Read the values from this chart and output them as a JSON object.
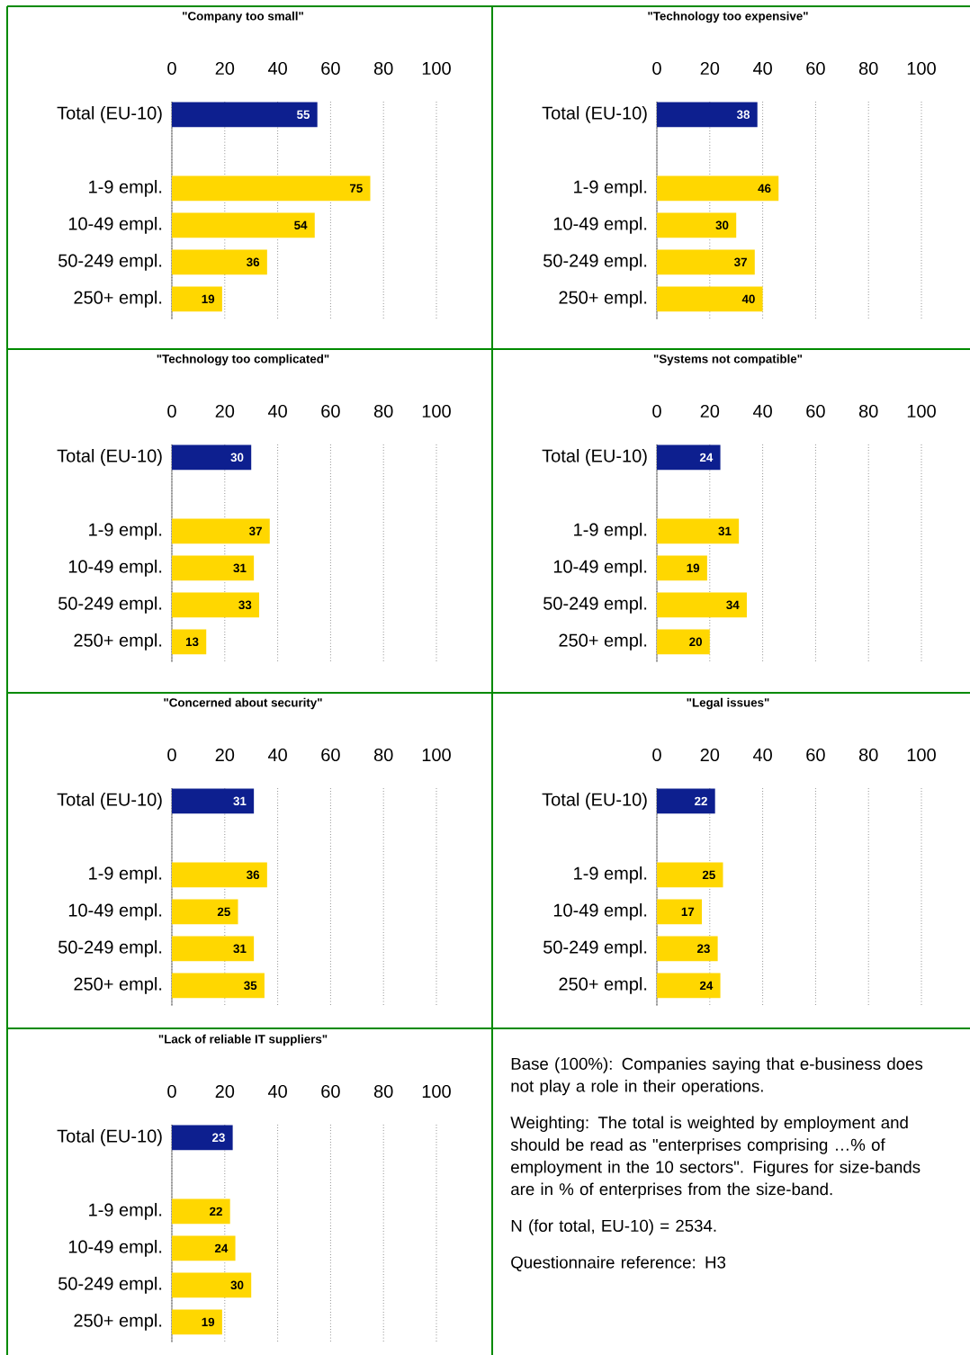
{
  "chart_data": [
    {
      "type": "bar",
      "orientation": "horizontal",
      "title": "\"Company too small\"",
      "categories": [
        "Total (EU-10)",
        null,
        "1-9 empl.",
        "10-49 empl.",
        "50-249 empl.",
        "250+ empl."
      ],
      "values": [
        55,
        null,
        75,
        54,
        36,
        19
      ],
      "colors": [
        "#0d1f8f",
        null,
        "#ffd700",
        "#ffd700",
        "#ffd700",
        "#ffd700"
      ],
      "xlim": [
        0,
        100
      ],
      "xticks": [
        0,
        20,
        40,
        60,
        80,
        100
      ],
      "grid": "x",
      "data_labels": true
    },
    {
      "type": "bar",
      "orientation": "horizontal",
      "title": "\"Technology too expensive\"",
      "categories": [
        "Total (EU-10)",
        null,
        "1-9 empl.",
        "10-49 empl.",
        "50-249 empl.",
        "250+ empl."
      ],
      "values": [
        38,
        null,
        46,
        30,
        37,
        40
      ],
      "colors": [
        "#0d1f8f",
        null,
        "#ffd700",
        "#ffd700",
        "#ffd700",
        "#ffd700"
      ],
      "xlim": [
        0,
        100
      ],
      "xticks": [
        0,
        20,
        40,
        60,
        80,
        100
      ],
      "grid": "x",
      "data_labels": true
    },
    {
      "type": "bar",
      "orientation": "horizontal",
      "title": "\"Technology too complicated\"",
      "categories": [
        "Total (EU-10)",
        null,
        "1-9 empl.",
        "10-49 empl.",
        "50-249 empl.",
        "250+ empl."
      ],
      "values": [
        30,
        null,
        37,
        31,
        33,
        13
      ],
      "colors": [
        "#0d1f8f",
        null,
        "#ffd700",
        "#ffd700",
        "#ffd700",
        "#ffd700"
      ],
      "xlim": [
        0,
        100
      ],
      "xticks": [
        0,
        20,
        40,
        60,
        80,
        100
      ],
      "grid": "x",
      "data_labels": true
    },
    {
      "type": "bar",
      "orientation": "horizontal",
      "title": "\"Systems not compatible\"",
      "categories": [
        "Total (EU-10)",
        null,
        "1-9 empl.",
        "10-49 empl.",
        "50-249 empl.",
        "250+ empl."
      ],
      "values": [
        24,
        null,
        31,
        19,
        34,
        20
      ],
      "colors": [
        "#0d1f8f",
        null,
        "#ffd700",
        "#ffd700",
        "#ffd700",
        "#ffd700"
      ],
      "xlim": [
        0,
        100
      ],
      "xticks": [
        0,
        20,
        40,
        60,
        80,
        100
      ],
      "grid": "x",
      "data_labels": true
    },
    {
      "type": "bar",
      "orientation": "horizontal",
      "title": "\"Concerned about security\"",
      "categories": [
        "Total (EU-10)",
        null,
        "1-9 empl.",
        "10-49 empl.",
        "50-249 empl.",
        "250+ empl."
      ],
      "values": [
        31,
        null,
        36,
        25,
        31,
        35
      ],
      "colors": [
        "#0d1f8f",
        null,
        "#ffd700",
        "#ffd700",
        "#ffd700",
        "#ffd700"
      ],
      "xlim": [
        0,
        100
      ],
      "xticks": [
        0,
        20,
        40,
        60,
        80,
        100
      ],
      "grid": "x",
      "data_labels": true
    },
    {
      "type": "bar",
      "orientation": "horizontal",
      "title": "\"Legal issues\"",
      "categories": [
        "Total (EU-10)",
        null,
        "1-9 empl.",
        "10-49 empl.",
        "50-249 empl.",
        "250+ empl."
      ],
      "values": [
        22,
        null,
        25,
        17,
        23,
        24
      ],
      "colors": [
        "#0d1f8f",
        null,
        "#ffd700",
        "#ffd700",
        "#ffd700",
        "#ffd700"
      ],
      "xlim": [
        0,
        100
      ],
      "xticks": [
        0,
        20,
        40,
        60,
        80,
        100
      ],
      "grid": "x",
      "data_labels": true
    },
    {
      "type": "bar",
      "orientation": "horizontal",
      "title": "\"Lack of reliable IT suppliers\"",
      "categories": [
        "Total (EU-10)",
        null,
        "1-9 empl.",
        "10-49 empl.",
        "50-249 empl.",
        "250+ empl."
      ],
      "values": [
        23,
        null,
        22,
        24,
        30,
        19
      ],
      "colors": [
        "#0d1f8f",
        null,
        "#ffd700",
        "#ffd700",
        "#ffd700",
        "#ffd700"
      ],
      "xlim": [
        0,
        100
      ],
      "xticks": [
        0,
        20,
        40,
        60,
        80,
        100
      ],
      "grid": "x",
      "data_labels": true
    },
    {
      "type": "other",
      "annotations": [
        "Base (100%): Companies saying that e-business does not play a role in their operations.",
        "Weighting: The total is weighted by employment and should be read as \"enterprises comprising …% of employment in the 10 sectors\". Figures for size-bands are in % of enterprises from the size-band.",
        "N (for total, EU-10) = 2534.",
        "Questionnaire reference: H3"
      ]
    }
  ]
}
